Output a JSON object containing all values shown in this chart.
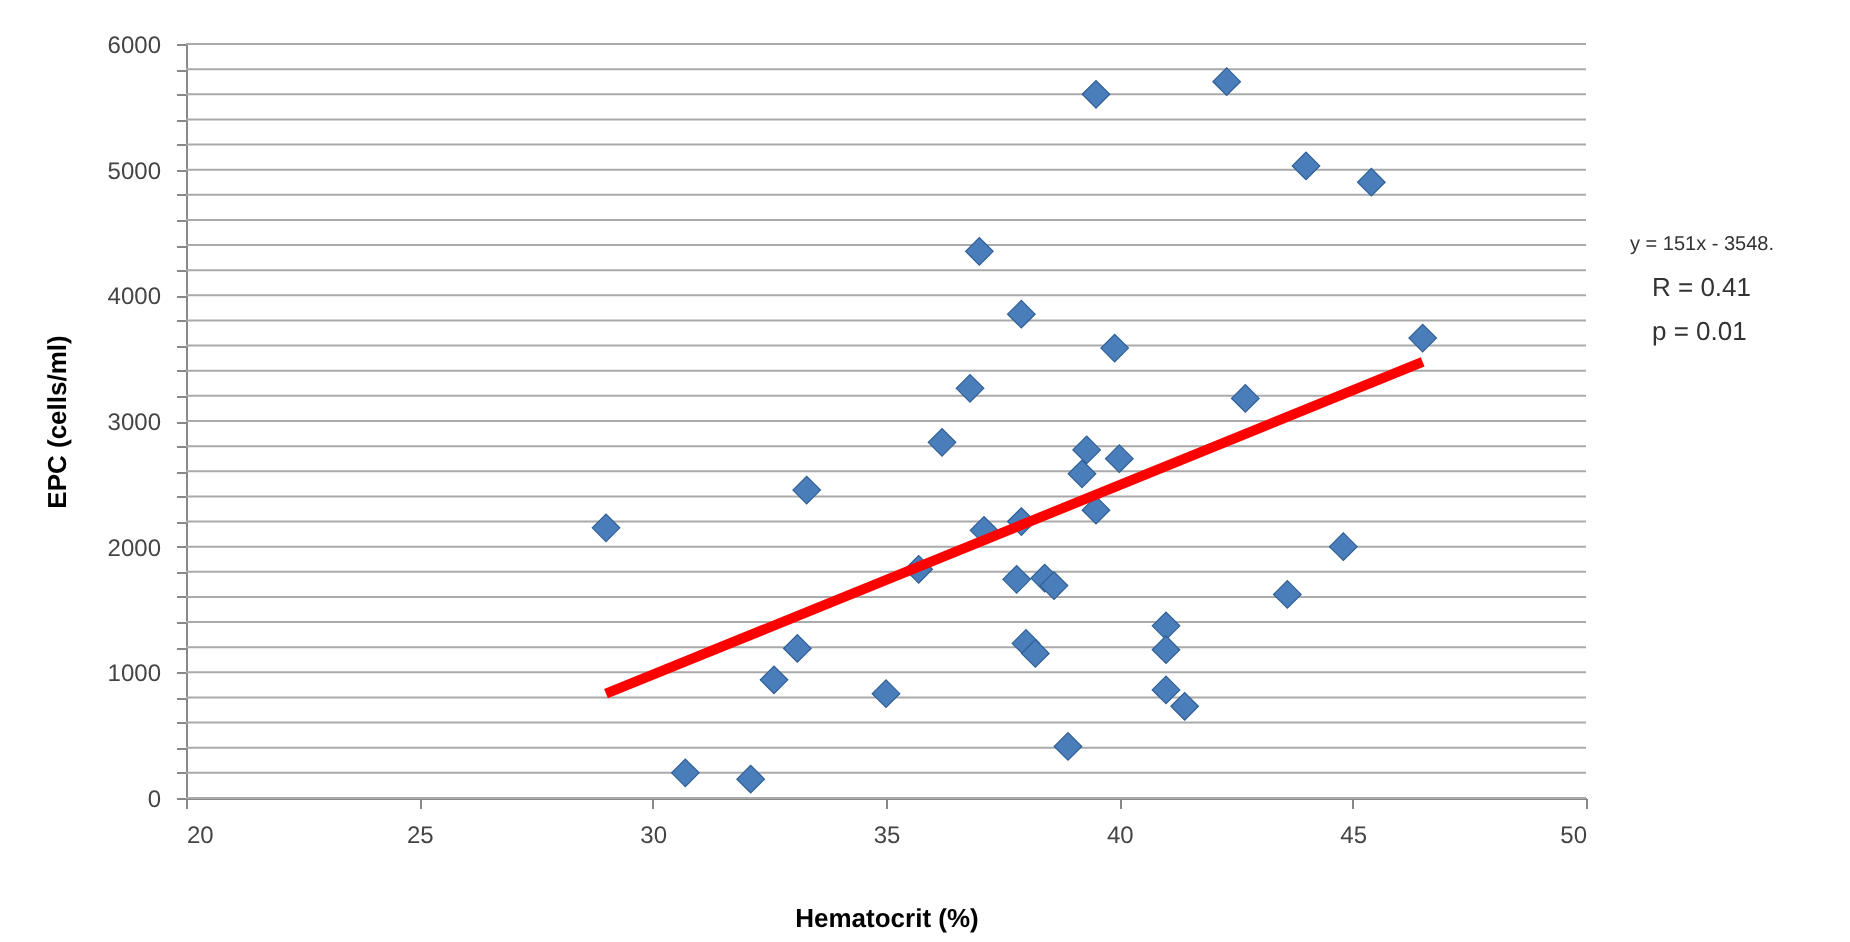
{
  "chart_data": {
    "type": "scatter",
    "xlabel": "Hematocrit (%)",
    "ylabel": "EPC (cells/ml)",
    "xlim": [
      20,
      50
    ],
    "xticks": [
      20,
      25,
      30,
      35,
      40,
      45,
      50
    ],
    "ylim": [
      0,
      6000
    ],
    "yticks": [
      0,
      {
        "value": 200,
        "label": null
      },
      {
        "value": 400,
        "label": null
      },
      {
        "value": 600,
        "label": null
      },
      {
        "value": 800,
        "label": null
      },
      1000,
      {
        "value": 1200,
        "label": null
      },
      {
        "value": 1400,
        "label": null
      },
      {
        "value": 1600,
        "label": null
      },
      {
        "value": 1800,
        "label": null
      },
      2000,
      {
        "value": 2200,
        "label": null
      },
      {
        "value": 2400,
        "label": null
      },
      {
        "value": 2600,
        "label": null
      },
      {
        "value": 2800,
        "label": null
      },
      3000,
      {
        "value": 3200,
        "label": null
      },
      {
        "value": 3400,
        "label": null
      },
      {
        "value": 3600,
        "label": null
      },
      {
        "value": 3800,
        "label": null
      },
      4000,
      {
        "value": 4200,
        "label": null
      },
      {
        "value": 4400,
        "label": null
      },
      {
        "value": 4600,
        "label": null
      },
      {
        "value": 4800,
        "label": null
      },
      5000,
      {
        "value": 5200,
        "label": null
      },
      {
        "value": 5400,
        "label": null
      },
      {
        "value": 5600,
        "label": null
      },
      {
        "value": 5800,
        "label": null
      },
      6000
    ],
    "grid": "y",
    "series": [
      {
        "marker": "diamond",
        "color": "#4a7ebb",
        "x": [
          29.0,
          30.7,
          32.1,
          32.6,
          33.1,
          33.3,
          35.0,
          35.7,
          36.2,
          36.8,
          37.0,
          37.1,
          37.9,
          37.9,
          37.8,
          38.4,
          38.6,
          38.0,
          38.2,
          38.9,
          39.2,
          39.3,
          39.5,
          39.5,
          39.9,
          40.0,
          42.3,
          42.7,
          41.0,
          41.0,
          41.0,
          41.4,
          43.6,
          44.0,
          44.8,
          45.4,
          46.5
        ],
        "values": [
          2150,
          200,
          150,
          940,
          1190,
          2450,
          830,
          1820,
          2830,
          3260,
          4350,
          2130,
          3850,
          2200,
          1740,
          1750,
          1690,
          1230,
          1150,
          410,
          2580,
          2770,
          5600,
          2290,
          3580,
          2700,
          5700,
          3180,
          1370,
          1180,
          860,
          730,
          1620,
          5030,
          2000,
          4900,
          3660
        ]
      },
      {
        "type": "line",
        "color": "#ff0000",
        "x": [
          29,
          46.5
        ],
        "values": [
          830,
          3470
        ]
      }
    ],
    "annotations": [
      "y = 151x - 3548.",
      "R = 0.41",
      "p = 0.01"
    ]
  }
}
